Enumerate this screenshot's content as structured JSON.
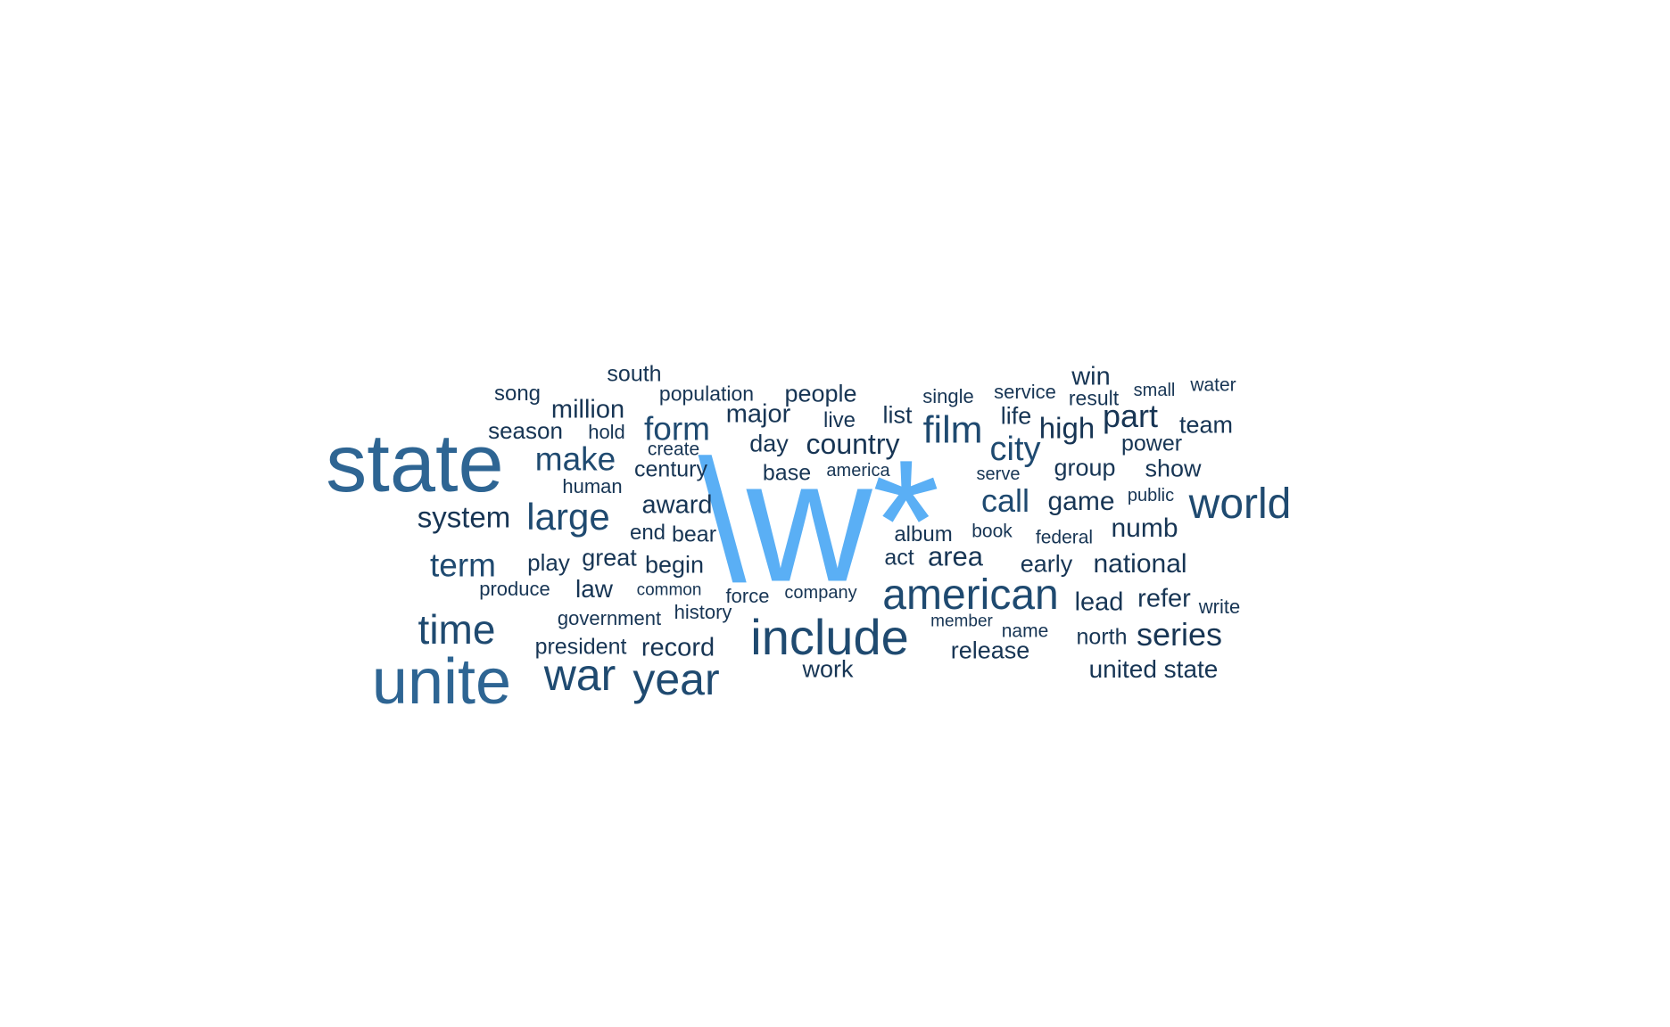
{
  "colors": {
    "background": "#ffffff",
    "top": "#5aaff5",
    "large": "#2e6593",
    "medium": "#1f4a70",
    "small": "#173554"
  },
  "words": [
    {
      "id": "w0",
      "text": "\\w*",
      "tier": "top"
    },
    {
      "id": "w1",
      "text": "state",
      "tier": "large"
    },
    {
      "id": "w2",
      "text": "unite",
      "tier": "large"
    },
    {
      "id": "w3",
      "text": "include",
      "tier": "medium"
    },
    {
      "id": "w4",
      "text": "american",
      "tier": "medium"
    },
    {
      "id": "w5",
      "text": "year",
      "tier": "medium"
    },
    {
      "id": "w6",
      "text": "war",
      "tier": "medium"
    },
    {
      "id": "w7",
      "text": "time",
      "tier": "medium"
    },
    {
      "id": "w8",
      "text": "world",
      "tier": "medium"
    },
    {
      "id": "w9",
      "text": "large",
      "tier": "medium"
    },
    {
      "id": "w10",
      "text": "film",
      "tier": "medium"
    },
    {
      "id": "w11",
      "text": "form",
      "tier": "medium"
    },
    {
      "id": "w12",
      "text": "make",
      "tier": "medium"
    },
    {
      "id": "w13",
      "text": "city",
      "tier": "medium"
    },
    {
      "id": "w14",
      "text": "call",
      "tier": "medium"
    },
    {
      "id": "w15",
      "text": "term",
      "tier": "medium"
    },
    {
      "id": "w16",
      "text": "series",
      "tier": "small"
    },
    {
      "id": "w17",
      "text": "system",
      "tier": "small"
    },
    {
      "id": "w18",
      "text": "country",
      "tier": "small"
    },
    {
      "id": "w19",
      "text": "part",
      "tier": "small"
    },
    {
      "id": "w20",
      "text": "high",
      "tier": "small"
    },
    {
      "id": "w21",
      "text": "game",
      "tier": "small"
    },
    {
      "id": "w22",
      "text": "numb",
      "tier": "small"
    },
    {
      "id": "w23",
      "text": "national",
      "tier": "small"
    },
    {
      "id": "w24",
      "text": "area",
      "tier": "small"
    },
    {
      "id": "w25",
      "text": "award",
      "tier": "small"
    },
    {
      "id": "w26",
      "text": "record",
      "tier": "small"
    },
    {
      "id": "w27",
      "text": "refer",
      "tier": "small"
    },
    {
      "id": "w28",
      "text": "lead",
      "tier": "small"
    },
    {
      "id": "w29",
      "text": "million",
      "tier": "small"
    },
    {
      "id": "w30",
      "text": "major",
      "tier": "small"
    },
    {
      "id": "w31",
      "text": "people",
      "tier": "small"
    },
    {
      "id": "w32",
      "text": "release",
      "tier": "small"
    },
    {
      "id": "w33",
      "text": "work",
      "tier": "small"
    },
    {
      "id": "w34",
      "text": "united state",
      "tier": "small"
    },
    {
      "id": "w35",
      "text": "great",
      "tier": "small"
    },
    {
      "id": "w36",
      "text": "early",
      "tier": "small"
    },
    {
      "id": "w37",
      "text": "group",
      "tier": "small"
    },
    {
      "id": "w38",
      "text": "show",
      "tier": "small"
    },
    {
      "id": "w39",
      "text": "team",
      "tier": "small"
    },
    {
      "id": "w40",
      "text": "win",
      "tier": "small"
    },
    {
      "id": "w41",
      "text": "law",
      "tier": "small"
    },
    {
      "id": "w42",
      "text": "day",
      "tier": "small"
    },
    {
      "id": "w43",
      "text": "begin",
      "tier": "small"
    },
    {
      "id": "w44",
      "text": "play",
      "tier": "small"
    },
    {
      "id": "w45",
      "text": "century",
      "tier": "small"
    },
    {
      "id": "w46",
      "text": "season",
      "tier": "small"
    },
    {
      "id": "w47",
      "text": "president",
      "tier": "small"
    },
    {
      "id": "w48",
      "text": "power",
      "tier": "small"
    },
    {
      "id": "w49",
      "text": "north",
      "tier": "small"
    },
    {
      "id": "w50",
      "text": "life",
      "tier": "small"
    },
    {
      "id": "w51",
      "text": "list",
      "tier": "small"
    },
    {
      "id": "w52",
      "text": "base",
      "tier": "small"
    },
    {
      "id": "w53",
      "text": "end",
      "tier": "small"
    },
    {
      "id": "w54",
      "text": "bear",
      "tier": "small"
    },
    {
      "id": "w55",
      "text": "south",
      "tier": "small"
    },
    {
      "id": "w56",
      "text": "album",
      "tier": "small"
    },
    {
      "id": "w57",
      "text": "act",
      "tier": "small"
    },
    {
      "id": "w58",
      "text": "live",
      "tier": "small"
    },
    {
      "id": "w59",
      "text": "song",
      "tier": "small"
    },
    {
      "id": "w60",
      "text": "population",
      "tier": "small"
    },
    {
      "id": "w61",
      "text": "government",
      "tier": "small"
    },
    {
      "id": "w62",
      "text": "force",
      "tier": "small"
    },
    {
      "id": "w63",
      "text": "history",
      "tier": "small"
    },
    {
      "id": "w64",
      "text": "produce",
      "tier": "small"
    },
    {
      "id": "w65",
      "text": "human",
      "tier": "small"
    },
    {
      "id": "w66",
      "text": "hold",
      "tier": "small"
    },
    {
      "id": "w67",
      "text": "write",
      "tier": "small"
    },
    {
      "id": "w68",
      "text": "result",
      "tier": "small"
    },
    {
      "id": "w69",
      "text": "service",
      "tier": "small"
    },
    {
      "id": "w70",
      "text": "single",
      "tier": "small"
    },
    {
      "id": "w71",
      "text": "water",
      "tier": "small"
    },
    {
      "id": "w72",
      "text": "company",
      "tier": "small"
    },
    {
      "id": "w73",
      "text": "book",
      "tier": "small"
    },
    {
      "id": "w74",
      "text": "federal",
      "tier": "small"
    },
    {
      "id": "w75",
      "text": "america",
      "tier": "small"
    },
    {
      "id": "w76",
      "text": "create",
      "tier": "small"
    },
    {
      "id": "w77",
      "text": "serve",
      "tier": "small"
    },
    {
      "id": "w78",
      "text": "small",
      "tier": "small"
    },
    {
      "id": "w79",
      "text": "public",
      "tier": "small"
    },
    {
      "id": "w80",
      "text": "member",
      "tier": "small"
    },
    {
      "id": "w81",
      "text": "name",
      "tier": "small"
    },
    {
      "id": "w82",
      "text": "common",
      "tier": "small"
    }
  ]
}
